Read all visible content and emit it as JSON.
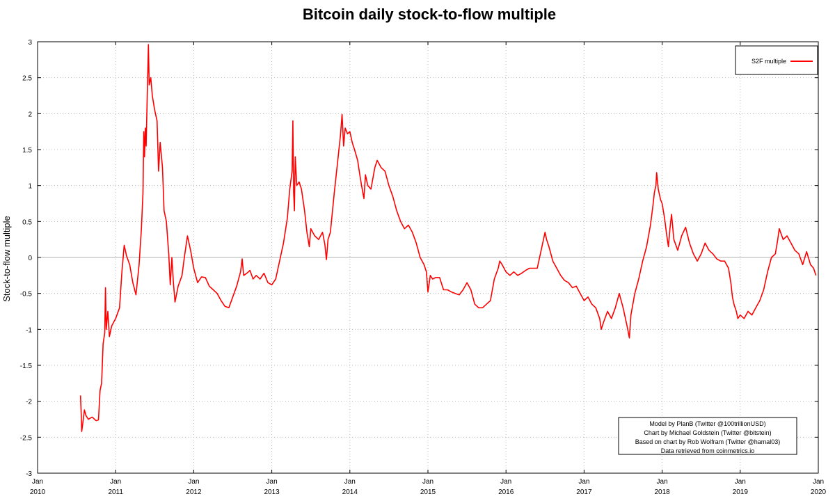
{
  "chart_data": {
    "type": "line",
    "title": "Bitcoin daily stock-to-flow multiple",
    "xlabel": "",
    "ylabel": "Stock-to-flow multiple",
    "xlim": [
      2010.0,
      2020.0
    ],
    "ylim": [
      -3,
      3
    ],
    "grid": true,
    "legend": {
      "position": "top-right",
      "entries": [
        "S2F multiple"
      ]
    },
    "x_ticks": [
      {
        "month": "Jan",
        "year": "2010"
      },
      {
        "month": "Jan",
        "year": "2011"
      },
      {
        "month": "Jan",
        "year": "2012"
      },
      {
        "month": "Jan",
        "year": "2013"
      },
      {
        "month": "Jan",
        "year": "2014"
      },
      {
        "month": "Jan",
        "year": "2015"
      },
      {
        "month": "Jan",
        "year": "2016"
      },
      {
        "month": "Jan",
        "year": "2017"
      },
      {
        "month": "Jan",
        "year": "2018"
      },
      {
        "month": "Jan",
        "year": "2019"
      },
      {
        "month": "Jan",
        "year": "2020"
      }
    ],
    "y_ticks": [
      "-3",
      "-2.5",
      "-2",
      "-1.5",
      "-1",
      "-0.5",
      "0",
      "0.5",
      "1",
      "1.5",
      "2",
      "2.5",
      "3"
    ],
    "series": [
      {
        "name": "S2F multiple",
        "color": "#ff0000",
        "points": [
          [
            2010.55,
            -1.92
          ],
          [
            2010.56,
            -2.2
          ],
          [
            2010.565,
            -2.42
          ],
          [
            2010.58,
            -2.3
          ],
          [
            2010.6,
            -2.12
          ],
          [
            2010.62,
            -2.2
          ],
          [
            2010.65,
            -2.25
          ],
          [
            2010.7,
            -2.22
          ],
          [
            2010.75,
            -2.27
          ],
          [
            2010.78,
            -2.26
          ],
          [
            2010.8,
            -1.85
          ],
          [
            2010.82,
            -1.75
          ],
          [
            2010.84,
            -1.2
          ],
          [
            2010.86,
            -1.05
          ],
          [
            2010.87,
            -0.42
          ],
          [
            2010.88,
            -1.0
          ],
          [
            2010.9,
            -0.75
          ],
          [
            2010.92,
            -1.1
          ],
          [
            2010.95,
            -0.95
          ],
          [
            2011.0,
            -0.85
          ],
          [
            2011.05,
            -0.7
          ],
          [
            2011.08,
            -0.2
          ],
          [
            2011.11,
            0.17
          ],
          [
            2011.14,
            0.02
          ],
          [
            2011.18,
            -0.1
          ],
          [
            2011.22,
            -0.35
          ],
          [
            2011.26,
            -0.52
          ],
          [
            2011.3,
            -0.1
          ],
          [
            2011.33,
            0.4
          ],
          [
            2011.35,
            0.9
          ],
          [
            2011.36,
            1.75
          ],
          [
            2011.37,
            1.4
          ],
          [
            2011.38,
            1.8
          ],
          [
            2011.39,
            1.55
          ],
          [
            2011.41,
            2.5
          ],
          [
            2011.42,
            2.96
          ],
          [
            2011.43,
            2.4
          ],
          [
            2011.45,
            2.5
          ],
          [
            2011.47,
            2.25
          ],
          [
            2011.5,
            2.05
          ],
          [
            2011.53,
            1.9
          ],
          [
            2011.55,
            1.2
          ],
          [
            2011.57,
            1.6
          ],
          [
            2011.6,
            1.25
          ],
          [
            2011.62,
            0.65
          ],
          [
            2011.65,
            0.5
          ],
          [
            2011.68,
            0.05
          ],
          [
            2011.7,
            -0.38
          ],
          [
            2011.72,
            0.0
          ],
          [
            2011.74,
            -0.35
          ],
          [
            2011.76,
            -0.62
          ],
          [
            2011.8,
            -0.4
          ],
          [
            2011.85,
            -0.25
          ],
          [
            2011.88,
            0.0
          ],
          [
            2011.92,
            0.3
          ],
          [
            2011.96,
            0.1
          ],
          [
            2012.0,
            -0.15
          ],
          [
            2012.05,
            -0.35
          ],
          [
            2012.1,
            -0.27
          ],
          [
            2012.15,
            -0.28
          ],
          [
            2012.2,
            -0.4
          ],
          [
            2012.25,
            -0.45
          ],
          [
            2012.3,
            -0.5
          ],
          [
            2012.35,
            -0.6
          ],
          [
            2012.4,
            -0.68
          ],
          [
            2012.45,
            -0.7
          ],
          [
            2012.5,
            -0.55
          ],
          [
            2012.55,
            -0.4
          ],
          [
            2012.6,
            -0.2
          ],
          [
            2012.62,
            -0.02
          ],
          [
            2012.64,
            -0.25
          ],
          [
            2012.68,
            -0.22
          ],
          [
            2012.72,
            -0.18
          ],
          [
            2012.76,
            -0.3
          ],
          [
            2012.8,
            -0.25
          ],
          [
            2012.85,
            -0.3
          ],
          [
            2012.9,
            -0.22
          ],
          [
            2012.95,
            -0.35
          ],
          [
            2013.0,
            -0.38
          ],
          [
            2013.05,
            -0.3
          ],
          [
            2013.1,
            -0.05
          ],
          [
            2013.15,
            0.2
          ],
          [
            2013.2,
            0.55
          ],
          [
            2013.23,
            0.95
          ],
          [
            2013.26,
            1.2
          ],
          [
            2013.27,
            1.9
          ],
          [
            2013.28,
            0.9
          ],
          [
            2013.29,
            0.65
          ],
          [
            2013.3,
            1.4
          ],
          [
            2013.32,
            1.0
          ],
          [
            2013.35,
            1.05
          ],
          [
            2013.38,
            0.95
          ],
          [
            2013.42,
            0.65
          ],
          [
            2013.45,
            0.35
          ],
          [
            2013.48,
            0.15
          ],
          [
            2013.5,
            0.4
          ],
          [
            2013.55,
            0.3
          ],
          [
            2013.6,
            0.25
          ],
          [
            2013.65,
            0.35
          ],
          [
            2013.68,
            0.18
          ],
          [
            2013.7,
            -0.03
          ],
          [
            2013.72,
            0.25
          ],
          [
            2013.75,
            0.35
          ],
          [
            2013.8,
            0.9
          ],
          [
            2013.85,
            1.4
          ],
          [
            2013.88,
            1.7
          ],
          [
            2013.9,
            1.99
          ],
          [
            2013.92,
            1.55
          ],
          [
            2013.94,
            1.8
          ],
          [
            2013.97,
            1.72
          ],
          [
            2014.0,
            1.75
          ],
          [
            2014.03,
            1.6
          ],
          [
            2014.06,
            1.5
          ],
          [
            2014.1,
            1.35
          ],
          [
            2014.12,
            1.2
          ],
          [
            2014.15,
            1.0
          ],
          [
            2014.18,
            0.82
          ],
          [
            2014.2,
            1.15
          ],
          [
            2014.23,
            1.0
          ],
          [
            2014.27,
            0.95
          ],
          [
            2014.32,
            1.25
          ],
          [
            2014.35,
            1.35
          ],
          [
            2014.4,
            1.25
          ],
          [
            2014.45,
            1.2
          ],
          [
            2014.5,
            1.0
          ],
          [
            2014.55,
            0.85
          ],
          [
            2014.6,
            0.65
          ],
          [
            2014.65,
            0.5
          ],
          [
            2014.7,
            0.4
          ],
          [
            2014.75,
            0.45
          ],
          [
            2014.8,
            0.35
          ],
          [
            2014.85,
            0.2
          ],
          [
            2014.9,
            0.0
          ],
          [
            2014.95,
            -0.1
          ],
          [
            2014.98,
            -0.2
          ],
          [
            2015.0,
            -0.48
          ],
          [
            2015.03,
            -0.25
          ],
          [
            2015.06,
            -0.3
          ],
          [
            2015.1,
            -0.28
          ],
          [
            2015.15,
            -0.28
          ],
          [
            2015.2,
            -0.45
          ],
          [
            2015.25,
            -0.45
          ],
          [
            2015.3,
            -0.48
          ],
          [
            2015.35,
            -0.5
          ],
          [
            2015.4,
            -0.52
          ],
          [
            2015.45,
            -0.45
          ],
          [
            2015.5,
            -0.35
          ],
          [
            2015.55,
            -0.45
          ],
          [
            2015.6,
            -0.65
          ],
          [
            2015.65,
            -0.7
          ],
          [
            2015.7,
            -0.7
          ],
          [
            2015.75,
            -0.65
          ],
          [
            2015.8,
            -0.6
          ],
          [
            2015.85,
            -0.3
          ],
          [
            2015.9,
            -0.15
          ],
          [
            2015.92,
            -0.05
          ],
          [
            2015.95,
            -0.1
          ],
          [
            2016.0,
            -0.2
          ],
          [
            2016.05,
            -0.25
          ],
          [
            2016.1,
            -0.2
          ],
          [
            2016.15,
            -0.25
          ],
          [
            2016.2,
            -0.22
          ],
          [
            2016.25,
            -0.18
          ],
          [
            2016.3,
            -0.15
          ],
          [
            2016.35,
            -0.15
          ],
          [
            2016.4,
            -0.15
          ],
          [
            2016.45,
            0.1
          ],
          [
            2016.5,
            0.35
          ],
          [
            2016.52,
            0.25
          ],
          [
            2016.55,
            0.15
          ],
          [
            2016.6,
            -0.05
          ],
          [
            2016.65,
            -0.15
          ],
          [
            2016.7,
            -0.25
          ],
          [
            2016.75,
            -0.32
          ],
          [
            2016.8,
            -0.35
          ],
          [
            2016.85,
            -0.42
          ],
          [
            2016.9,
            -0.4
          ],
          [
            2016.95,
            -0.5
          ],
          [
            2017.0,
            -0.6
          ],
          [
            2017.05,
            -0.55
          ],
          [
            2017.1,
            -0.65
          ],
          [
            2017.15,
            -0.7
          ],
          [
            2017.2,
            -0.85
          ],
          [
            2017.22,
            -1.0
          ],
          [
            2017.25,
            -0.9
          ],
          [
            2017.3,
            -0.75
          ],
          [
            2017.35,
            -0.85
          ],
          [
            2017.4,
            -0.7
          ],
          [
            2017.45,
            -0.5
          ],
          [
            2017.5,
            -0.7
          ],
          [
            2017.55,
            -0.95
          ],
          [
            2017.58,
            -1.12
          ],
          [
            2017.6,
            -0.8
          ],
          [
            2017.65,
            -0.5
          ],
          [
            2017.7,
            -0.3
          ],
          [
            2017.75,
            -0.05
          ],
          [
            2017.8,
            0.15
          ],
          [
            2017.85,
            0.45
          ],
          [
            2017.88,
            0.7
          ],
          [
            2017.9,
            0.9
          ],
          [
            2017.92,
            1.0
          ],
          [
            2017.93,
            1.18
          ],
          [
            2017.95,
            0.95
          ],
          [
            2017.98,
            0.8
          ],
          [
            2018.0,
            0.75
          ],
          [
            2018.03,
            0.55
          ],
          [
            2018.06,
            0.3
          ],
          [
            2018.08,
            0.15
          ],
          [
            2018.1,
            0.4
          ],
          [
            2018.12,
            0.6
          ],
          [
            2018.15,
            0.25
          ],
          [
            2018.2,
            0.1
          ],
          [
            2018.25,
            0.3
          ],
          [
            2018.3,
            0.42
          ],
          [
            2018.35,
            0.2
          ],
          [
            2018.4,
            0.05
          ],
          [
            2018.45,
            -0.05
          ],
          [
            2018.5,
            0.05
          ],
          [
            2018.55,
            0.2
          ],
          [
            2018.6,
            0.1
          ],
          [
            2018.65,
            0.05
          ],
          [
            2018.7,
            -0.02
          ],
          [
            2018.75,
            -0.05
          ],
          [
            2018.8,
            -0.05
          ],
          [
            2018.85,
            -0.15
          ],
          [
            2018.88,
            -0.35
          ],
          [
            2018.9,
            -0.55
          ],
          [
            2018.92,
            -0.65
          ],
          [
            2018.95,
            -0.75
          ],
          [
            2018.97,
            -0.85
          ],
          [
            2019.0,
            -0.8
          ],
          [
            2019.05,
            -0.85
          ],
          [
            2019.1,
            -0.75
          ],
          [
            2019.15,
            -0.8
          ],
          [
            2019.2,
            -0.7
          ],
          [
            2019.25,
            -0.6
          ],
          [
            2019.3,
            -0.45
          ],
          [
            2019.35,
            -0.2
          ],
          [
            2019.4,
            0.0
          ],
          [
            2019.45,
            0.05
          ],
          [
            2019.48,
            0.25
          ],
          [
            2019.5,
            0.4
          ],
          [
            2019.55,
            0.25
          ],
          [
            2019.6,
            0.3
          ],
          [
            2019.65,
            0.2
          ],
          [
            2019.7,
            0.1
          ],
          [
            2019.75,
            0.05
          ],
          [
            2019.8,
            -0.1
          ],
          [
            2019.85,
            0.08
          ],
          [
            2019.9,
            -0.1
          ],
          [
            2019.94,
            -0.15
          ],
          [
            2019.97,
            -0.25
          ]
        ]
      }
    ],
    "credits": [
      "Model by PlanB (Twitter @100trillionUSD)",
      "Chart by Michael Goldstein (Twitter @bitstein)",
      "Based on chart by Rob Wolfram (Twitter @hamal03)",
      "Data retrieved from coinmetrics.io"
    ]
  }
}
